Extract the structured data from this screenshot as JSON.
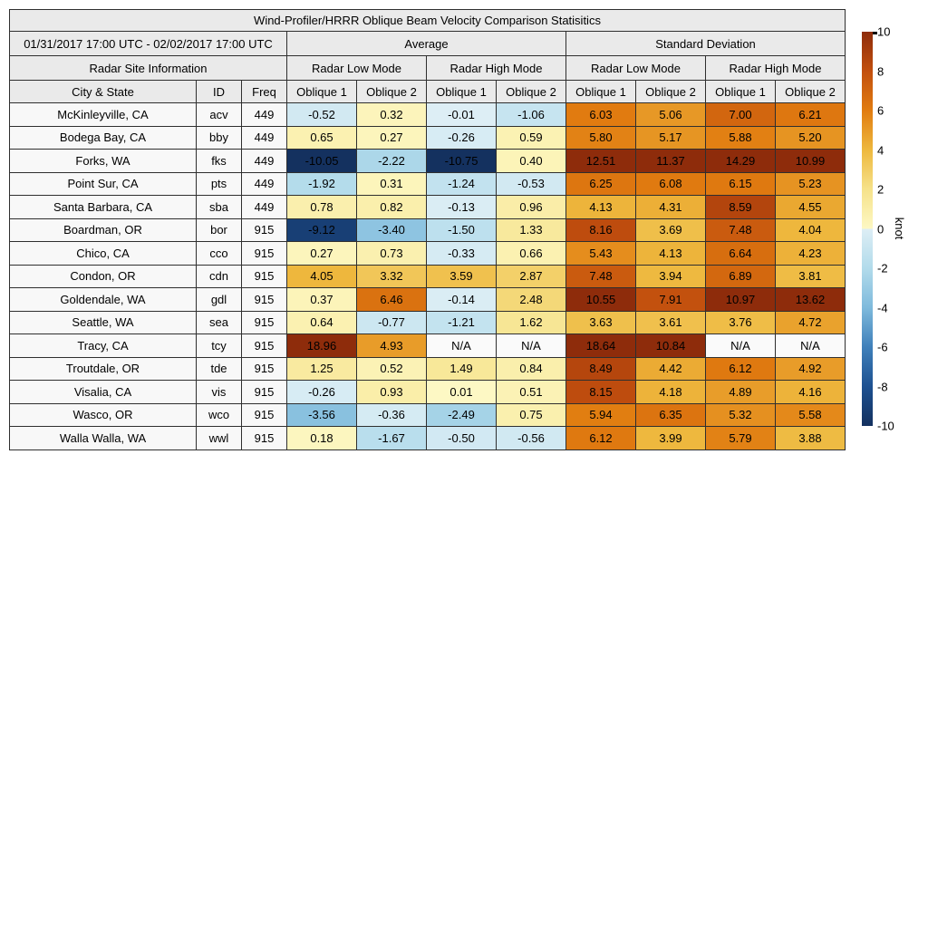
{
  "chart_data": {
    "type": "heatmap",
    "title": "Wind-Profiler/HRRR Oblique Beam Velocity Comparison Statisitics",
    "date_range": "01/31/2017 17:00 UTC - 02/02/2017 17:00 UTC",
    "groups": [
      "Average",
      "Standard Deviation"
    ],
    "modes": [
      "Radar Site Information",
      "Radar Low Mode",
      "Radar High Mode",
      "Radar Low Mode",
      "Radar High Mode"
    ],
    "columns": [
      "City & State",
      "ID",
      "Freq",
      "Oblique 1",
      "Oblique 2",
      "Oblique 1",
      "Oblique 2",
      "Oblique 1",
      "Oblique 2",
      "Oblique 1",
      "Oblique 2"
    ],
    "rows": [
      {
        "city": "McKinleyville, CA",
        "id": "acv",
        "freq": "449",
        "values": [
          "-0.52",
          "0.32",
          "-0.01",
          "-1.06",
          "6.03",
          "5.06",
          "7.00",
          "6.21"
        ]
      },
      {
        "city": "Bodega Bay, CA",
        "id": "bby",
        "freq": "449",
        "values": [
          "0.65",
          "0.27",
          "-0.26",
          "0.59",
          "5.80",
          "5.17",
          "5.88",
          "5.20"
        ]
      },
      {
        "city": "Forks, WA",
        "id": "fks",
        "freq": "449",
        "values": [
          "-10.05",
          "-2.22",
          "-10.75",
          "0.40",
          "12.51",
          "11.37",
          "14.29",
          "10.99"
        ]
      },
      {
        "city": "Point Sur, CA",
        "id": "pts",
        "freq": "449",
        "values": [
          "-1.92",
          "0.31",
          "-1.24",
          "-0.53",
          "6.25",
          "6.08",
          "6.15",
          "5.23"
        ]
      },
      {
        "city": "Santa Barbara, CA",
        "id": "sba",
        "freq": "449",
        "values": [
          "0.78",
          "0.82",
          "-0.13",
          "0.96",
          "4.13",
          "4.31",
          "8.59",
          "4.55"
        ]
      },
      {
        "city": "Boardman, OR",
        "id": "bor",
        "freq": "915",
        "values": [
          "-9.12",
          "-3.40",
          "-1.50",
          "1.33",
          "8.16",
          "3.69",
          "7.48",
          "4.04"
        ]
      },
      {
        "city": "Chico, CA",
        "id": "cco",
        "freq": "915",
        "values": [
          "0.27",
          "0.73",
          "-0.33",
          "0.66",
          "5.43",
          "4.13",
          "6.64",
          "4.23"
        ]
      },
      {
        "city": "Condon, OR",
        "id": "cdn",
        "freq": "915",
        "values": [
          "4.05",
          "3.32",
          "3.59",
          "2.87",
          "7.48",
          "3.94",
          "6.89",
          "3.81"
        ]
      },
      {
        "city": "Goldendale, WA",
        "id": "gdl",
        "freq": "915",
        "values": [
          "0.37",
          "6.46",
          "-0.14",
          "2.48",
          "10.55",
          "7.91",
          "10.97",
          "13.62"
        ]
      },
      {
        "city": "Seattle, WA",
        "id": "sea",
        "freq": "915",
        "values": [
          "0.64",
          "-0.77",
          "-1.21",
          "1.62",
          "3.63",
          "3.61",
          "3.76",
          "4.72"
        ]
      },
      {
        "city": "Tracy, CA",
        "id": "tcy",
        "freq": "915",
        "values": [
          "18.96",
          "4.93",
          "N/A",
          "N/A",
          "18.64",
          "10.84",
          "N/A",
          "N/A"
        ]
      },
      {
        "city": "Troutdale, OR",
        "id": "tde",
        "freq": "915",
        "values": [
          "1.25",
          "0.52",
          "1.49",
          "0.84",
          "8.49",
          "4.42",
          "6.12",
          "4.92"
        ]
      },
      {
        "city": "Visalia, CA",
        "id": "vis",
        "freq": "915",
        "values": [
          "-0.26",
          "0.93",
          "0.01",
          "0.51",
          "8.15",
          "4.18",
          "4.89",
          "4.16"
        ]
      },
      {
        "city": "Wasco, OR",
        "id": "wco",
        "freq": "915",
        "values": [
          "-3.56",
          "-0.36",
          "-2.49",
          "0.75",
          "5.94",
          "6.35",
          "5.32",
          "5.58"
        ]
      },
      {
        "city": "Walla Walla, WA",
        "id": "wwl",
        "freq": "915",
        "values": [
          "0.18",
          "-1.67",
          "-0.50",
          "-0.56",
          "6.12",
          "3.99",
          "5.79",
          "3.88"
        ]
      }
    ],
    "colorbar": {
      "label": "knot",
      "min": -10,
      "max": 10,
      "ticks": [
        10,
        8,
        6,
        4,
        2,
        0,
        -2,
        -4,
        -6,
        -8,
        -10
      ],
      "stops": [
        {
          "v": -10,
          "c": "#14315f"
        },
        {
          "v": -8,
          "c": "#1d5191"
        },
        {
          "v": -6,
          "c": "#3f80ba"
        },
        {
          "v": -4,
          "c": "#7ebadc"
        },
        {
          "v": -2,
          "c": "#b2dbeb"
        },
        {
          "v": -0.0001,
          "c": "#ddeef5"
        },
        {
          "v": 0.0001,
          "c": "#fdf8c4"
        },
        {
          "v": 2,
          "c": "#f6e28a"
        },
        {
          "v": 4,
          "c": "#eeb83e"
        },
        {
          "v": 6,
          "c": "#e17c10"
        },
        {
          "v": 8,
          "c": "#c24f0e"
        },
        {
          "v": 10,
          "c": "#8e2c0b"
        }
      ],
      "na_color": "#fafafa"
    },
    "colors": {
      "header_bg": "#eaeaea",
      "label_bg": "#f8f8f8",
      "border": "#2f2f2f"
    }
  }
}
